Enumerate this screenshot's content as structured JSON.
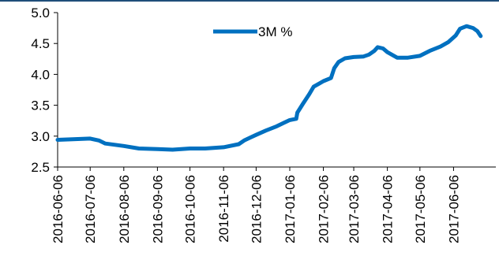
{
  "chart_data": {
    "type": "line",
    "title": "",
    "xlabel": "",
    "ylabel": "",
    "ylim": [
      2.5,
      5.0
    ],
    "yticks": [
      "2.5",
      "3.0",
      "3.5",
      "4.0",
      "4.5",
      "5.0"
    ],
    "xticks": [
      "2016-06-06",
      "2016-07-06",
      "2016-08-06",
      "2016-09-06",
      "2016-10-06",
      "2016-11-06",
      "2016-12-06",
      "2017-01-06",
      "2017-02-06",
      "2017-03-06",
      "2017-04-06",
      "2017-05-06",
      "2017-06-06"
    ],
    "xlim": [
      "2016-06-06",
      "2017-07-15"
    ],
    "grid": false,
    "legend_position": "top-center",
    "series": [
      {
        "name": "3M %",
        "color": "#0070c0",
        "points": [
          [
            "2016-06-06",
            2.94
          ],
          [
            "2016-06-20",
            2.95
          ],
          [
            "2016-07-06",
            2.96
          ],
          [
            "2016-07-14",
            2.93
          ],
          [
            "2016-07-20",
            2.88
          ],
          [
            "2016-08-06",
            2.84
          ],
          [
            "2016-08-20",
            2.8
          ],
          [
            "2016-09-06",
            2.79
          ],
          [
            "2016-09-20",
            2.78
          ],
          [
            "2016-10-06",
            2.8
          ],
          [
            "2016-10-20",
            2.8
          ],
          [
            "2016-11-06",
            2.82
          ],
          [
            "2016-11-20",
            2.87
          ],
          [
            "2016-11-25",
            2.93
          ],
          [
            "2016-12-01",
            2.98
          ],
          [
            "2016-12-06",
            3.02
          ],
          [
            "2016-12-15",
            3.09
          ],
          [
            "2016-12-25",
            3.16
          ],
          [
            "2017-01-01",
            3.22
          ],
          [
            "2017-01-06",
            3.26
          ],
          [
            "2017-01-12",
            3.28
          ],
          [
            "2017-01-13",
            3.38
          ],
          [
            "2017-01-18",
            3.52
          ],
          [
            "2017-01-24",
            3.68
          ],
          [
            "2017-01-28",
            3.8
          ],
          [
            "2017-02-02",
            3.85
          ],
          [
            "2017-02-06",
            3.89
          ],
          [
            "2017-02-13",
            3.94
          ],
          [
            "2017-02-16",
            4.1
          ],
          [
            "2017-02-20",
            4.2
          ],
          [
            "2017-02-26",
            4.26
          ],
          [
            "2017-03-06",
            4.28
          ],
          [
            "2017-03-15",
            4.29
          ],
          [
            "2017-03-20",
            4.32
          ],
          [
            "2017-03-25",
            4.38
          ],
          [
            "2017-03-28",
            4.44
          ],
          [
            "2017-04-02",
            4.42
          ],
          [
            "2017-04-06",
            4.36
          ],
          [
            "2017-04-15",
            4.27
          ],
          [
            "2017-04-25",
            4.27
          ],
          [
            "2017-05-06",
            4.3
          ],
          [
            "2017-05-15",
            4.38
          ],
          [
            "2017-05-25",
            4.45
          ],
          [
            "2017-06-01",
            4.52
          ],
          [
            "2017-06-08",
            4.63
          ],
          [
            "2017-06-12",
            4.74
          ],
          [
            "2017-06-18",
            4.78
          ],
          [
            "2017-06-24",
            4.75
          ],
          [
            "2017-06-28",
            4.7
          ],
          [
            "2017-07-01",
            4.62
          ]
        ]
      }
    ]
  }
}
